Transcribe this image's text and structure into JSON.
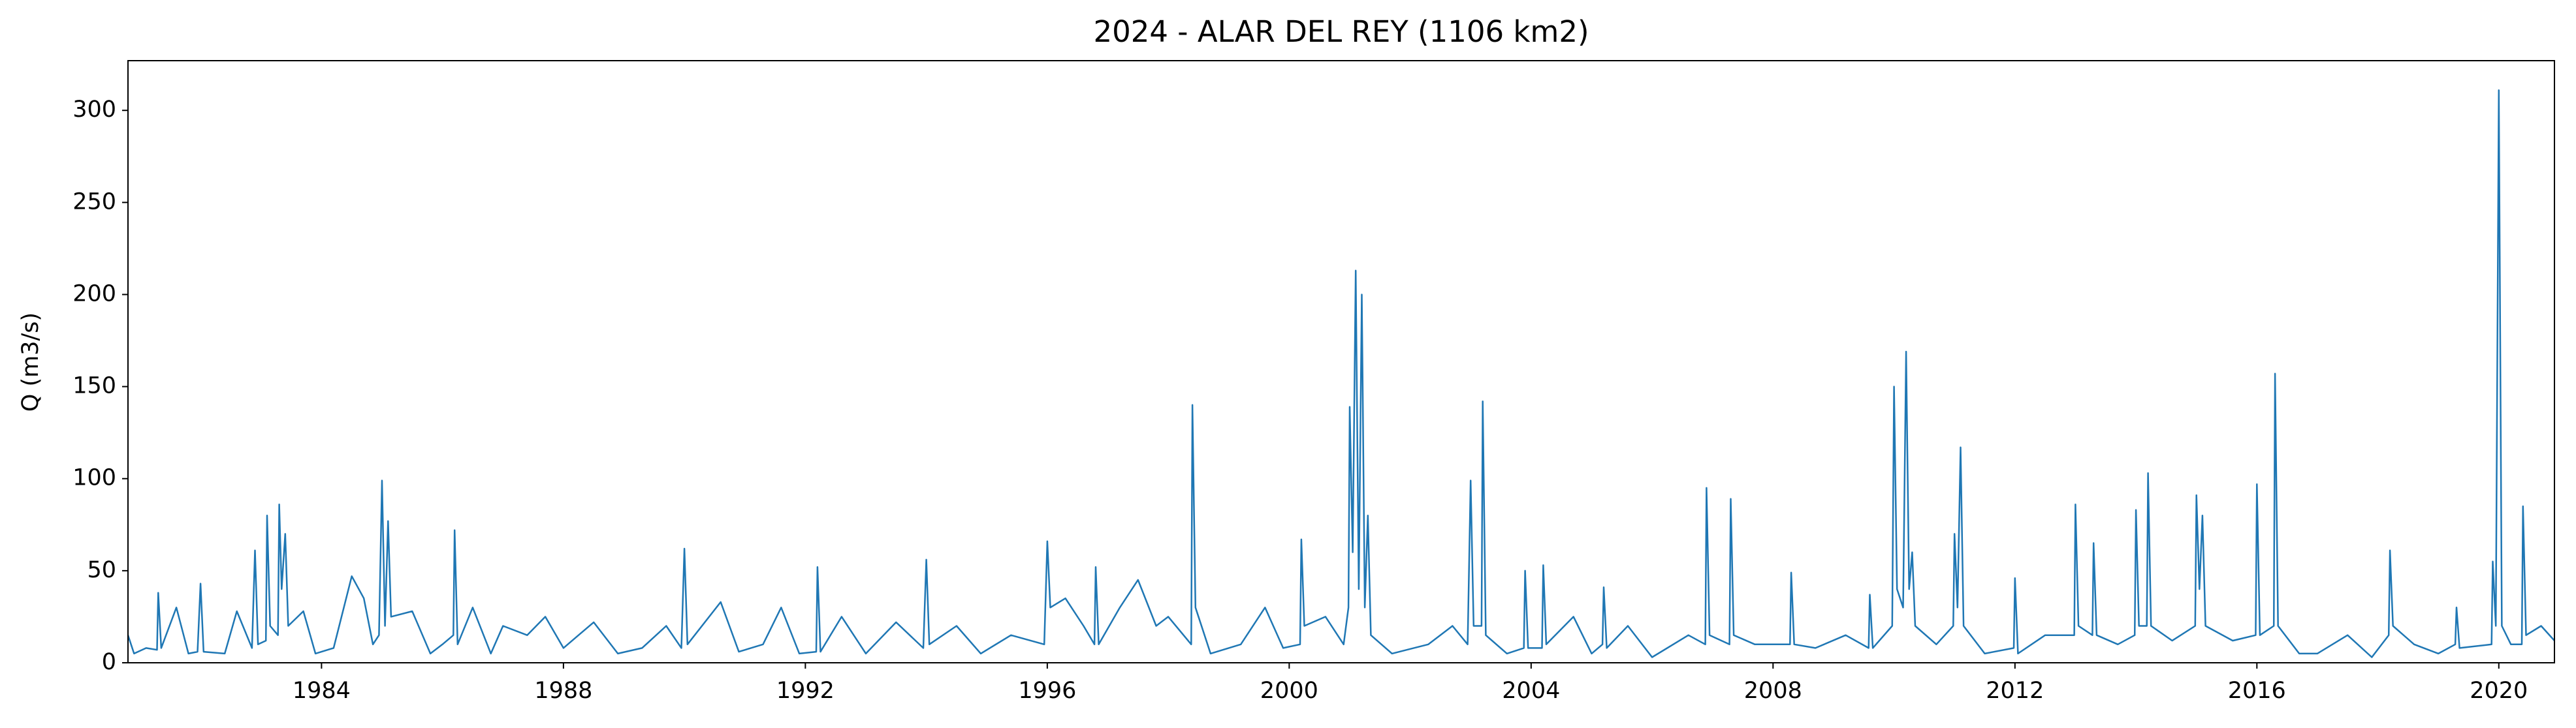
{
  "chart_data": {
    "type": "line",
    "title": "2024 - ALAR DEL REY (1106 km2)",
    "y_label": "Q (m3/s)",
    "color": "#1f77b4",
    "xlim": [
      1980.8,
      2020.92
    ],
    "ylim": [
      0,
      327
    ],
    "xticks": [
      1984,
      1988,
      1992,
      1996,
      2000,
      2004,
      2008,
      2012,
      2016,
      2020
    ],
    "yticks": [
      0,
      50,
      100,
      150,
      200,
      250,
      300
    ],
    "x": [
      1980.8,
      1980.9,
      1981.1,
      1981.28,
      1981.3,
      1981.35,
      1981.6,
      1981.8,
      1981.95,
      1982.0,
      1982.05,
      1982.4,
      1982.6,
      1982.85,
      1982.9,
      1982.95,
      1983.08,
      1983.1,
      1983.15,
      1983.28,
      1983.3,
      1983.34,
      1983.4,
      1983.45,
      1983.7,
      1983.9,
      1984.2,
      1984.5,
      1984.7,
      1984.85,
      1984.95,
      1985.0,
      1985.05,
      1985.1,
      1985.15,
      1985.5,
      1985.8,
      1986.0,
      1986.18,
      1986.2,
      1986.25,
      1986.5,
      1986.8,
      1987.0,
      1987.4,
      1987.7,
      1988.0,
      1988.5,
      1988.9,
      1989.3,
      1989.7,
      1989.95,
      1990.0,
      1990.05,
      1990.6,
      1990.9,
      1991.3,
      1991.6,
      1991.9,
      1992.18,
      1992.2,
      1992.25,
      1992.6,
      1993.0,
      1993.5,
      1993.95,
      1994.0,
      1994.05,
      1994.5,
      1994.9,
      1995.4,
      1995.95,
      1996.0,
      1996.05,
      1996.3,
      1996.6,
      1996.78,
      1996.8,
      1996.85,
      1997.2,
      1997.5,
      1997.8,
      1998.0,
      1998.38,
      1998.4,
      1998.45,
      1998.7,
      1999.2,
      1999.6,
      1999.9,
      2000.18,
      2000.2,
      2000.25,
      2000.6,
      2000.9,
      2000.98,
      2001.0,
      2001.05,
      2001.1,
      2001.15,
      2001.2,
      2001.25,
      2001.3,
      2001.35,
      2001.7,
      2002.3,
      2002.7,
      2002.95,
      2003.0,
      2003.05,
      2003.18,
      2003.2,
      2003.25,
      2003.6,
      2003.88,
      2003.9,
      2003.95,
      2004.18,
      2004.2,
      2004.25,
      2004.7,
      2005.0,
      2005.18,
      2005.2,
      2005.25,
      2005.6,
      2006.0,
      2006.6,
      2006.88,
      2006.9,
      2006.95,
      2007.28,
      2007.3,
      2007.35,
      2007.7,
      2008.28,
      2008.3,
      2008.35,
      2008.7,
      2009.2,
      2009.58,
      2009.6,
      2009.65,
      2009.97,
      2010.0,
      2010.05,
      2010.15,
      2010.2,
      2010.25,
      2010.3,
      2010.35,
      2010.7,
      2010.98,
      2011.0,
      2011.05,
      2011.1,
      2011.15,
      2011.5,
      2011.98,
      2012.0,
      2012.05,
      2012.5,
      2012.98,
      2013.0,
      2013.05,
      2013.28,
      2013.3,
      2013.35,
      2013.7,
      2013.98,
      2014.0,
      2014.05,
      2014.18,
      2014.2,
      2014.25,
      2014.6,
      2014.98,
      2015.0,
      2015.05,
      2015.1,
      2015.15,
      2015.6,
      2015.98,
      2016.0,
      2016.05,
      2016.28,
      2016.3,
      2016.35,
      2016.7,
      2017.0,
      2017.5,
      2017.9,
      2018.18,
      2018.2,
      2018.25,
      2018.6,
      2019.0,
      2019.28,
      2019.3,
      2019.35,
      2019.88,
      2019.9,
      2019.95,
      2020.0,
      2020.05,
      2020.2,
      2020.38,
      2020.4,
      2020.45,
      2020.7,
      2020.92
    ],
    "values": [
      15,
      5,
      8,
      7,
      38,
      8,
      30,
      5,
      6,
      43,
      6,
      5,
      28,
      8,
      61,
      10,
      12,
      80,
      20,
      15,
      86,
      40,
      70,
      20,
      28,
      5,
      8,
      47,
      35,
      10,
      15,
      99,
      20,
      77,
      25,
      28,
      5,
      10,
      15,
      72,
      10,
      30,
      5,
      20,
      15,
      25,
      8,
      22,
      5,
      8,
      20,
      8,
      62,
      10,
      33,
      6,
      10,
      30,
      5,
      6,
      52,
      6,
      25,
      5,
      22,
      8,
      56,
      10,
      20,
      5,
      15,
      10,
      66,
      30,
      35,
      20,
      10,
      52,
      10,
      30,
      45,
      20,
      25,
      10,
      140,
      30,
      5,
      10,
      30,
      8,
      10,
      67,
      20,
      25,
      10,
      30,
      139,
      60,
      213,
      40,
      200,
      30,
      80,
      15,
      5,
      10,
      20,
      10,
      99,
      20,
      20,
      142,
      15,
      5,
      8,
      50,
      8,
      8,
      53,
      10,
      25,
      5,
      10,
      41,
      8,
      20,
      3,
      15,
      10,
      95,
      15,
      10,
      89,
      15,
      10,
      10,
      49,
      10,
      8,
      15,
      8,
      37,
      8,
      20,
      150,
      40,
      30,
      169,
      40,
      60,
      20,
      10,
      20,
      70,
      30,
      117,
      20,
      5,
      8,
      46,
      5,
      15,
      15,
      86,
      20,
      15,
      65,
      15,
      10,
      15,
      83,
      20,
      20,
      103,
      20,
      12,
      20,
      91,
      40,
      80,
      20,
      12,
      15,
      97,
      15,
      20,
      157,
      20,
      5,
      5,
      15,
      3,
      15,
      61,
      20,
      10,
      5,
      10,
      30,
      8,
      10,
      55,
      20,
      311,
      20,
      10,
      10,
      85,
      15,
      20,
      12
    ]
  }
}
